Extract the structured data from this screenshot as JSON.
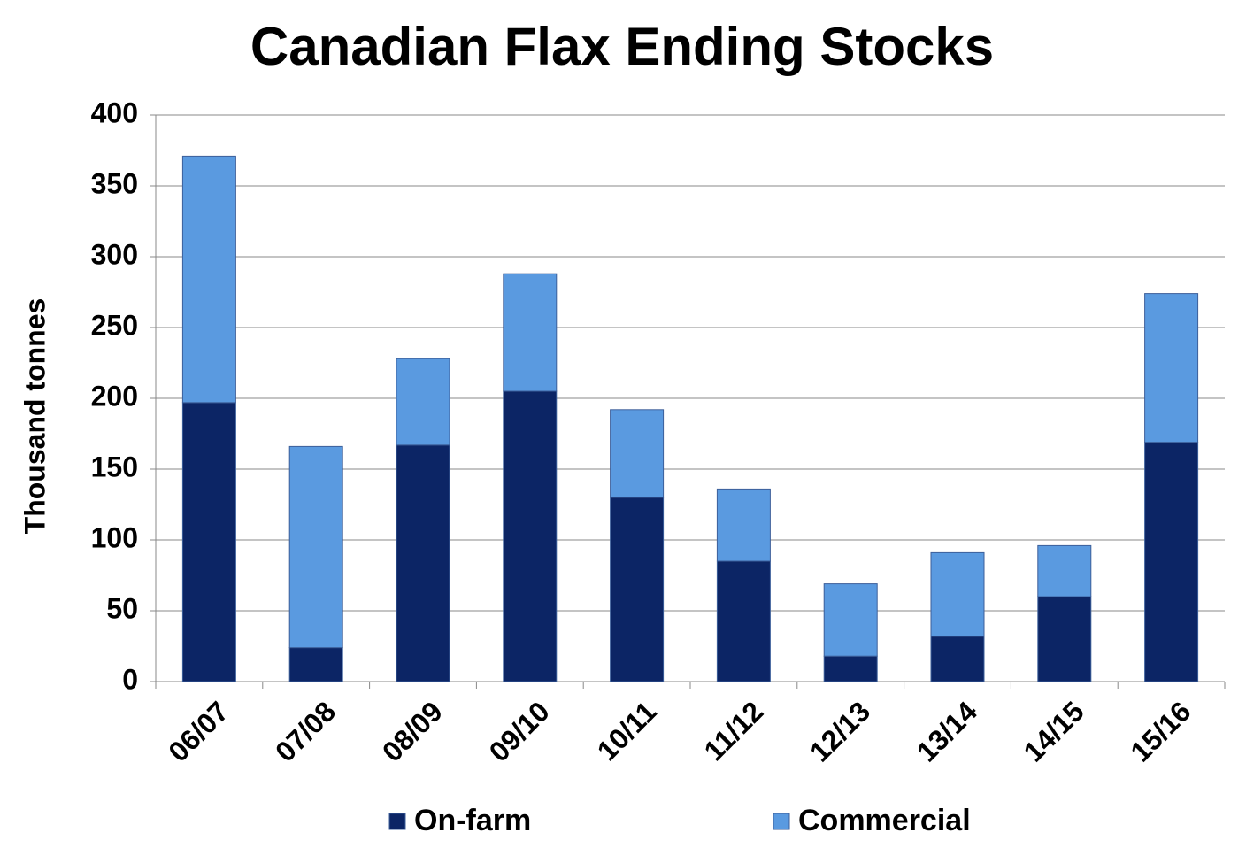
{
  "chart_data": {
    "type": "stacked-bar",
    "title": "Canadian Flax Ending Stocks",
    "y_axis_label": "Thousand tonnes",
    "categories": [
      "06/07",
      "07/08",
      "08/09",
      "09/10",
      "10/11",
      "11/12",
      "12/13",
      "13/14",
      "14/15",
      "15/16"
    ],
    "series": [
      {
        "name": "On-farm",
        "color": "#0c2565",
        "values": [
          197,
          24,
          167,
          205,
          130,
          85,
          18,
          32,
          60,
          169
        ]
      },
      {
        "name": "Commercial",
        "color": "#5a9ae0",
        "values": [
          174,
          142,
          61,
          83,
          62,
          51,
          51,
          59,
          36,
          105
        ]
      }
    ],
    "ylim": [
      0,
      400
    ],
    "yticks": [
      0,
      50,
      100,
      150,
      200,
      250,
      300,
      350,
      400
    ],
    "grid": true,
    "legend": "bottom"
  }
}
